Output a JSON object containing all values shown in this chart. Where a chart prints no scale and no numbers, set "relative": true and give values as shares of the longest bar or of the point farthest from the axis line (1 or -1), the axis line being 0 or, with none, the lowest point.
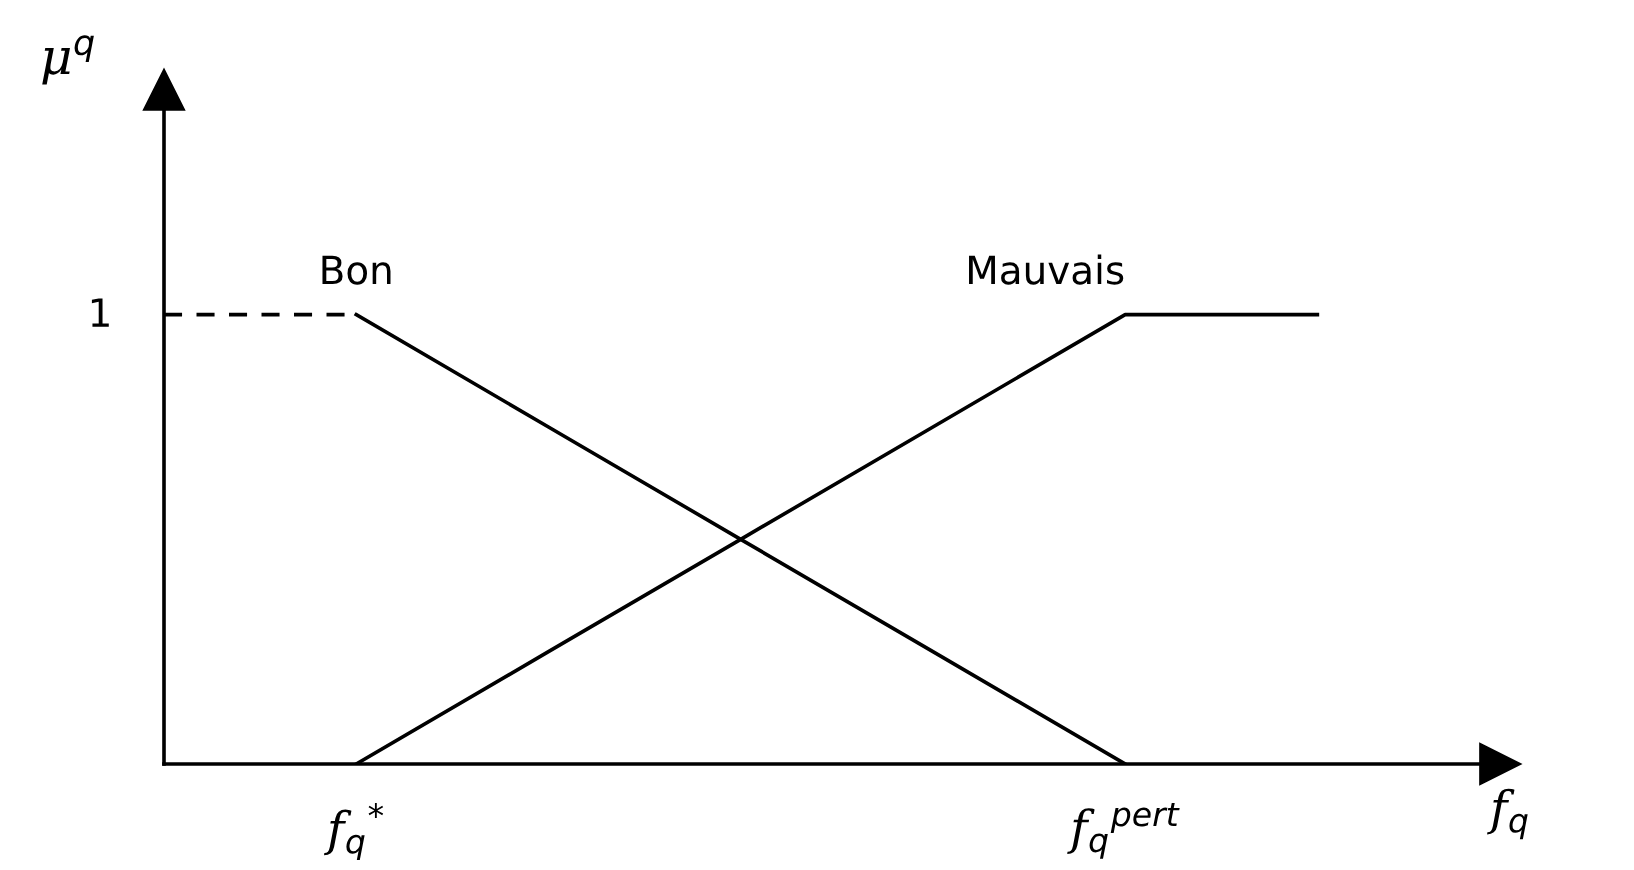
{
  "chart_data": {
    "type": "line",
    "relative": true,
    "xlabel": "f$_{q}$",
    "ylabel": "μ$^{q}$",
    "categories": [
      null,
      "f$_{q}$$^{*}$",
      null,
      null,
      null,
      "f$_{q}$$^{pert}$",
      null
    ],
    "annotations": [
      "1"
    ],
    "series": [
      {
        "color": "#000000",
        "values": [
          1,
          1,
          null,
          null,
          null,
          null,
          null
        ],
        "line_style": "dashed"
      },
      {
        "name": "Bon",
        "color": "#000000",
        "values": [
          null,
          1,
          0.75,
          0.5,
          0.25,
          0,
          null
        ]
      },
      {
        "name": "Mauvais",
        "color": "#000000",
        "values": [
          null,
          0,
          0.25,
          0.5,
          0.75,
          1,
          1
        ]
      }
    ],
    "legend": false,
    "grid": false,
    "marker": "none"
  }
}
